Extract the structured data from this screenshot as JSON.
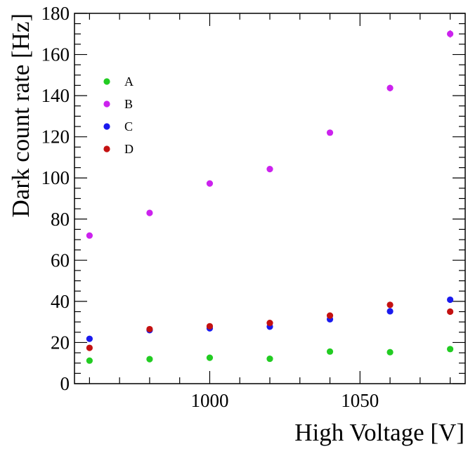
{
  "chart_data": {
    "type": "scatter",
    "title": "",
    "xlabel": "High Voltage [V]",
    "ylabel": "Dark count rate [Hz]",
    "xlim": [
      955,
      1085
    ],
    "ylim": [
      0,
      180
    ],
    "x_ticks": [
      1000,
      1050
    ],
    "y_ticks": [
      0,
      20,
      40,
      60,
      80,
      100,
      120,
      140,
      160,
      180
    ],
    "grid": false,
    "legend_position": "top-left",
    "x": [
      960,
      980,
      1000,
      1020,
      1040,
      1060,
      1080
    ],
    "series": [
      {
        "name": "A",
        "color": "#22cc22",
        "values": [
          11.2,
          11.9,
          12.6,
          12.1,
          15.6,
          15.3,
          16.8
        ],
        "errors": [
          0.3,
          0.3,
          0.3,
          0.3,
          0.4,
          0.4,
          0.4
        ]
      },
      {
        "name": "B",
        "color": "#cc22ee",
        "values": [
          72.0,
          83.0,
          97.3,
          104.3,
          122.0,
          143.7,
          170.0
        ],
        "errors": [
          0.9,
          1.0,
          1.1,
          1.2,
          1.3,
          1.6,
          1.8
        ]
      },
      {
        "name": "C",
        "color": "#1a1aee",
        "values": [
          21.8,
          26.0,
          26.9,
          27.7,
          31.3,
          35.2,
          40.8
        ],
        "errors": [
          0.4,
          0.4,
          0.4,
          0.4,
          0.5,
          0.5,
          0.5
        ]
      },
      {
        "name": "D",
        "color": "#c41111",
        "values": [
          17.4,
          26.5,
          27.9,
          29.5,
          33.1,
          38.3,
          35.0
        ],
        "errors": [
          0.4,
          0.4,
          0.4,
          0.4,
          0.5,
          0.5,
          0.5
        ]
      }
    ]
  }
}
